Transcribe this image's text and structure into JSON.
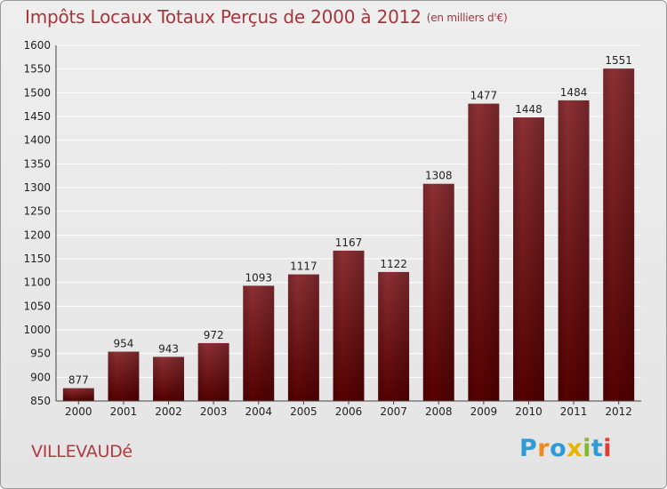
{
  "title": "Impôts Locaux Totaux Perçus de 2000 à 2012",
  "title_unit": "(en milliers d'€)",
  "town": "VILLEVAUDé",
  "logo": "Proxiti",
  "colors": {
    "title": "#a5363c",
    "bar_top": "#8c3034",
    "bar_bottom": "#560000",
    "grid": "#ffffff",
    "background": "#e9e9e9"
  },
  "chart_data": {
    "type": "bar",
    "categories": [
      "2000",
      "2001",
      "2002",
      "2003",
      "2004",
      "2005",
      "2006",
      "2007",
      "2008",
      "2009",
      "2010",
      "2011",
      "2012"
    ],
    "values": [
      877,
      954,
      943,
      972,
      1093,
      1117,
      1167,
      1122,
      1308,
      1477,
      1448,
      1484,
      1551
    ],
    "ylim": [
      850,
      1600
    ],
    "yticks": [
      850,
      900,
      950,
      1000,
      1050,
      1100,
      1150,
      1200,
      1250,
      1300,
      1350,
      1400,
      1450,
      1500,
      1550,
      1600
    ],
    "grid": true
  }
}
